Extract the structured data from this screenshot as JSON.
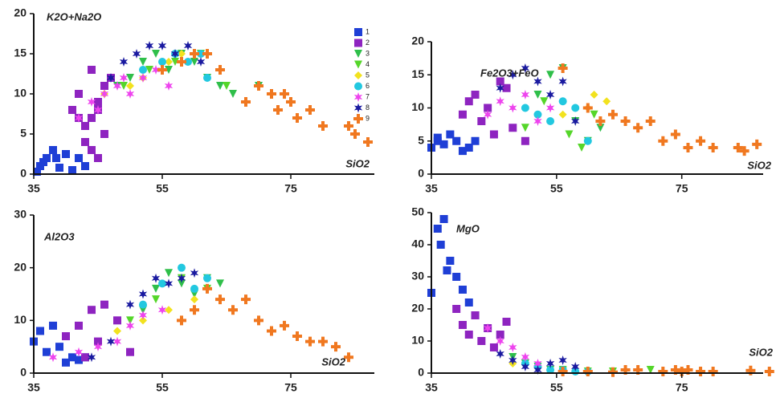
{
  "chart_data": [
    {
      "type": "scatter",
      "y_label": "K2O+Na2O",
      "x_label": "SiO2",
      "xlim": [
        35,
        88
      ],
      "xticks": [
        35,
        55,
        75
      ],
      "ylim": [
        0,
        20
      ],
      "yticks": [
        0,
        5,
        10,
        15,
        20
      ],
      "series": [
        {
          "name": "1",
          "color": "#1f3fd6",
          "marker": "square",
          "x": [
            35.5,
            36,
            37,
            38,
            39,
            40,
            41,
            42,
            43,
            36.5,
            38.5
          ],
          "values": [
            0.3,
            1,
            2,
            3,
            0.8,
            2.5,
            0.5,
            2,
            1,
            1.5,
            2
          ]
        },
        {
          "name": "2",
          "color": "#8e24c0",
          "marker": "square",
          "x": [
            41,
            42,
            43,
            44,
            45,
            46,
            43,
            44,
            45,
            46,
            47,
            42,
            44,
            45
          ],
          "values": [
            8,
            10,
            6,
            7,
            9,
            11,
            4,
            3,
            2,
            5,
            12,
            7,
            13,
            8
          ]
        },
        {
          "name": "3",
          "color": "#2fbf4a",
          "marker": "triangle",
          "x": [
            48,
            50,
            52,
            54,
            56,
            58,
            60,
            62,
            64,
            66,
            70
          ],
          "values": [
            11,
            12,
            14,
            15,
            13,
            15,
            14,
            12,
            11,
            10,
            11
          ]
        },
        {
          "name": "4",
          "color": "#55d62a",
          "marker": "triangle",
          "x": [
            49,
            53,
            57,
            61,
            65
          ],
          "values": [
            11,
            13,
            14,
            15,
            11
          ]
        },
        {
          "name": "5",
          "color": "#f2e21e",
          "marker": "diamond",
          "x": [
            46,
            50,
            52,
            56,
            58
          ],
          "values": [
            10,
            11,
            12,
            14,
            15
          ]
        },
        {
          "name": "6",
          "color": "#22c8e0",
          "marker": "circle",
          "x": [
            52,
            55,
            57,
            59,
            61,
            62
          ],
          "values": [
            13,
            14,
            15,
            14,
            15,
            12
          ]
        },
        {
          "name": "7",
          "color": "#ee44ee",
          "marker": "star",
          "x": [
            42,
            44,
            46,
            48,
            50,
            52,
            54,
            56,
            45,
            49
          ],
          "values": [
            7,
            9,
            10,
            11,
            10,
            12,
            13,
            11,
            8,
            12
          ]
        },
        {
          "name": "8",
          "color": "#1a1aa0",
          "marker": "star",
          "x": [
            47,
            49,
            51,
            53,
            55,
            57,
            59,
            61
          ],
          "values": [
            12,
            14,
            15,
            16,
            16,
            15,
            16,
            14
          ]
        },
        {
          "name": "9",
          "color": "#f07820",
          "marker": "cross",
          "x": [
            55,
            58,
            60,
            62,
            64,
            68,
            70,
            72,
            73,
            74,
            75,
            76,
            78,
            80,
            84,
            85,
            87
          ],
          "values": [
            13,
            14,
            15,
            15,
            13,
            9,
            11,
            10,
            8,
            10,
            9,
            7,
            8,
            6,
            6,
            5,
            4
          ]
        }
      ]
    },
    {
      "type": "scatter",
      "y_label": "Fe2O3+FeO",
      "x_label": "SiO2",
      "xlim": [
        35,
        88
      ],
      "xticks": [
        35,
        55,
        75
      ],
      "ylim": [
        0,
        20
      ],
      "yticks": [
        0,
        5,
        10,
        15,
        20
      ],
      "series": [
        {
          "color": "#1f3fd6",
          "marker": "square",
          "x": [
            35,
            36,
            37,
            38,
            39,
            40,
            41,
            42,
            36
          ],
          "values": [
            4,
            5,
            4.5,
            6,
            5,
            3.5,
            4,
            5,
            5.5
          ]
        },
        {
          "color": "#8e24c0",
          "marker": "square",
          "x": [
            40,
            42,
            44,
            46,
            48,
            45,
            43,
            41,
            47,
            50
          ],
          "values": [
            9,
            12,
            10,
            14,
            7,
            6,
            8,
            11,
            13,
            5
          ]
        },
        {
          "color": "#2fbf4a",
          "marker": "triangle",
          "x": [
            52,
            54,
            56,
            58,
            60,
            62
          ],
          "values": [
            12,
            15,
            16,
            8,
            5,
            7
          ]
        },
        {
          "color": "#55d62a",
          "marker": "triangle",
          "x": [
            50,
            53,
            57,
            59,
            61
          ],
          "values": [
            7,
            11,
            6,
            4,
            9
          ]
        },
        {
          "color": "#f2e21e",
          "marker": "diamond",
          "x": [
            56,
            60,
            61,
            63
          ],
          "values": [
            9,
            10,
            12,
            11
          ]
        },
        {
          "color": "#22c8e0",
          "marker": "circle",
          "x": [
            50,
            52,
            54,
            56,
            58,
            60
          ],
          "values": [
            10,
            9,
            8,
            11,
            10,
            5
          ]
        },
        {
          "color": "#ee44ee",
          "marker": "star",
          "x": [
            44,
            46,
            48,
            50,
            52,
            54
          ],
          "values": [
            9,
            11,
            10,
            12,
            8,
            10
          ]
        },
        {
          "color": "#1a1aa0",
          "marker": "star",
          "x": [
            46,
            48,
            50,
            52,
            54,
            56,
            58
          ],
          "values": [
            13,
            15,
            16,
            14,
            12,
            14,
            8
          ]
        },
        {
          "color": "#f07820",
          "marker": "cross",
          "x": [
            56,
            60,
            62,
            64,
            66,
            68,
            70,
            72,
            74,
            76,
            78,
            80,
            84,
            85,
            87
          ],
          "values": [
            16,
            10,
            8,
            9,
            8,
            7,
            8,
            5,
            6,
            4,
            5,
            4,
            4,
            3.5,
            4.5
          ]
        }
      ]
    },
    {
      "type": "scatter",
      "y_label": "Al2O3",
      "x_label": "SiO2",
      "xlim": [
        35,
        88
      ],
      "xticks": [
        35,
        55,
        75
      ],
      "ylim": [
        0,
        30
      ],
      "yticks": [
        0,
        10,
        20,
        30
      ],
      "series": [
        {
          "color": "#1f3fd6",
          "marker": "square",
          "x": [
            35,
            36,
            37,
            38,
            39,
            40,
            41,
            42,
            43
          ],
          "values": [
            6,
            8,
            4,
            9,
            5,
            2,
            3,
            2.5,
            3
          ]
        },
        {
          "color": "#8e24c0",
          "marker": "square",
          "x": [
            40,
            42,
            44,
            46,
            48,
            50,
            43,
            45
          ],
          "values": [
            7,
            9,
            12,
            13,
            10,
            4,
            3,
            6
          ]
        },
        {
          "color": "#2fbf4a",
          "marker": "triangle",
          "x": [
            52,
            54,
            56,
            58,
            60,
            62,
            64
          ],
          "values": [
            12,
            16,
            19,
            17,
            15,
            18,
            17
          ]
        },
        {
          "color": "#55d62a",
          "marker": "triangle",
          "x": [
            50,
            54,
            58,
            62
          ],
          "values": [
            10,
            14,
            18,
            16
          ]
        },
        {
          "color": "#f2e21e",
          "marker": "diamond",
          "x": [
            48,
            52,
            56,
            60
          ],
          "values": [
            8,
            10,
            12,
            14
          ]
        },
        {
          "color": "#22c8e0",
          "marker": "circle",
          "x": [
            52,
            55,
            58,
            60,
            62
          ],
          "values": [
            13,
            17,
            20,
            16,
            18
          ]
        },
        {
          "color": "#ee44ee",
          "marker": "star",
          "x": [
            38,
            42,
            45,
            48,
            50,
            52,
            55
          ],
          "values": [
            3,
            4,
            5,
            6,
            9,
            11,
            12
          ]
        },
        {
          "color": "#1a1aa0",
          "marker": "star",
          "x": [
            44,
            47,
            50,
            52,
            54,
            56,
            58,
            60
          ],
          "values": [
            3,
            6,
            13,
            15,
            18,
            17,
            18,
            19
          ]
        },
        {
          "color": "#f07820",
          "marker": "cross",
          "x": [
            58,
            60,
            62,
            64,
            66,
            68,
            70,
            72,
            74,
            76,
            78,
            80,
            82,
            84
          ],
          "values": [
            10,
            12,
            16,
            14,
            12,
            14,
            10,
            8,
            9,
            7,
            6,
            6,
            5,
            3
          ]
        }
      ]
    },
    {
      "type": "scatter",
      "y_label": "MgO",
      "x_label": "SiO2",
      "xlim": [
        35,
        88
      ],
      "xticks": [
        35,
        55,
        75
      ],
      "ylim": [
        0,
        50
      ],
      "yticks": [
        0,
        10,
        20,
        30,
        40,
        50
      ],
      "series": [
        {
          "color": "#1f3fd6",
          "marker": "square",
          "x": [
            35,
            36,
            37,
            38,
            39,
            40,
            41,
            42,
            36.5,
            37.5
          ],
          "values": [
            25,
            45,
            48,
            35,
            30,
            26,
            22,
            18,
            40,
            32
          ]
        },
        {
          "color": "#8e24c0",
          "marker": "square",
          "x": [
            39,
            40,
            41,
            42,
            43,
            44,
            45,
            46,
            47
          ],
          "values": [
            20,
            15,
            12,
            18,
            10,
            14,
            8,
            12,
            16
          ]
        },
        {
          "color": "#2fbf4a",
          "marker": "triangle",
          "x": [
            48,
            50,
            52,
            54,
            56
          ],
          "values": [
            5,
            3,
            2,
            1,
            0.5
          ]
        },
        {
          "color": "#55d62a",
          "marker": "triangle",
          "x": [
            52,
            56,
            60,
            64,
            70
          ],
          "values": [
            1,
            1,
            0.5,
            0.5,
            1
          ]
        },
        {
          "color": "#f2e21e",
          "marker": "diamond",
          "x": [
            48,
            52,
            56
          ],
          "values": [
            3,
            2,
            1
          ]
        },
        {
          "color": "#22c8e0",
          "marker": "circle",
          "x": [
            50,
            52,
            54,
            56,
            58,
            60
          ],
          "values": [
            3,
            2,
            1,
            1,
            0.5,
            0.5
          ]
        },
        {
          "color": "#ee44ee",
          "marker": "star",
          "x": [
            44,
            46,
            48,
            50,
            52
          ],
          "values": [
            14,
            10,
            8,
            5,
            3
          ]
        },
        {
          "color": "#1a1aa0",
          "marker": "star",
          "x": [
            46,
            48,
            50,
            52,
            54,
            56,
            58
          ],
          "values": [
            6,
            4,
            2,
            1,
            3,
            4,
            2
          ]
        },
        {
          "color": "#f07820",
          "marker": "cross",
          "x": [
            56,
            60,
            64,
            66,
            68,
            72,
            74,
            75,
            76,
            78,
            80,
            86,
            89
          ],
          "values": [
            0.5,
            0.5,
            0.3,
            1,
            1,
            0.5,
            1,
            0.5,
            1,
            0.5,
            0.5,
            0.8,
            0.5
          ]
        }
      ]
    }
  ]
}
